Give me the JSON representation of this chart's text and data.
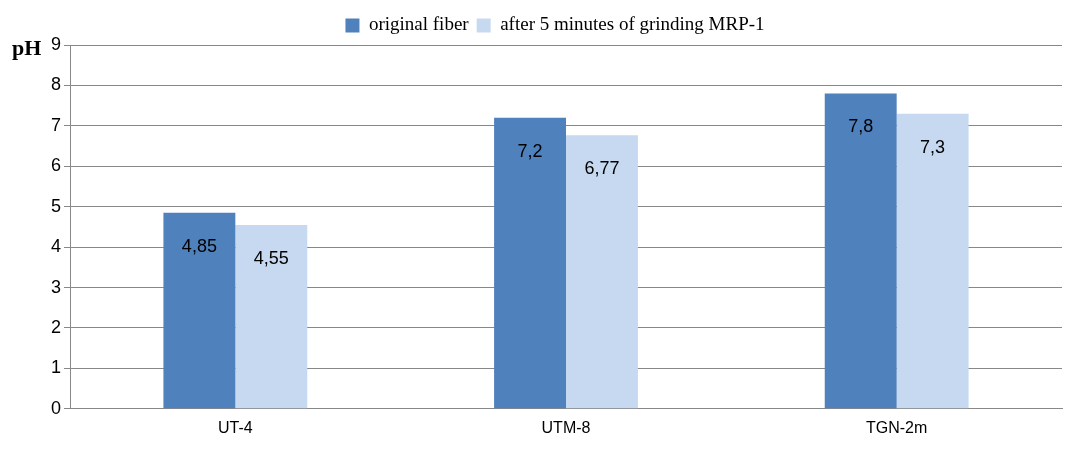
{
  "chart_data": {
    "type": "bar",
    "ylabel": "pH",
    "categories": [
      "UT-4",
      "UTM-8",
      "TGN-2m"
    ],
    "series": [
      {
        "name": "original fiber",
        "color": "#4f81bd",
        "values": [
          4.85,
          7.2,
          7.8
        ],
        "value_labels": [
          "4,85",
          "7,2",
          "7,8"
        ]
      },
      {
        "name": "after 5 minutes of grinding MRP-1",
        "color": "#c6d9f1",
        "values": [
          4.55,
          6.77,
          7.3
        ],
        "value_labels": [
          "4,55",
          "6,77",
          "7,3"
        ]
      }
    ],
    "ylim": [
      0,
      9
    ],
    "yticks": [
      0,
      1,
      2,
      3,
      4,
      5,
      6,
      7,
      8,
      9
    ],
    "grid": "y",
    "legend": "top"
  }
}
